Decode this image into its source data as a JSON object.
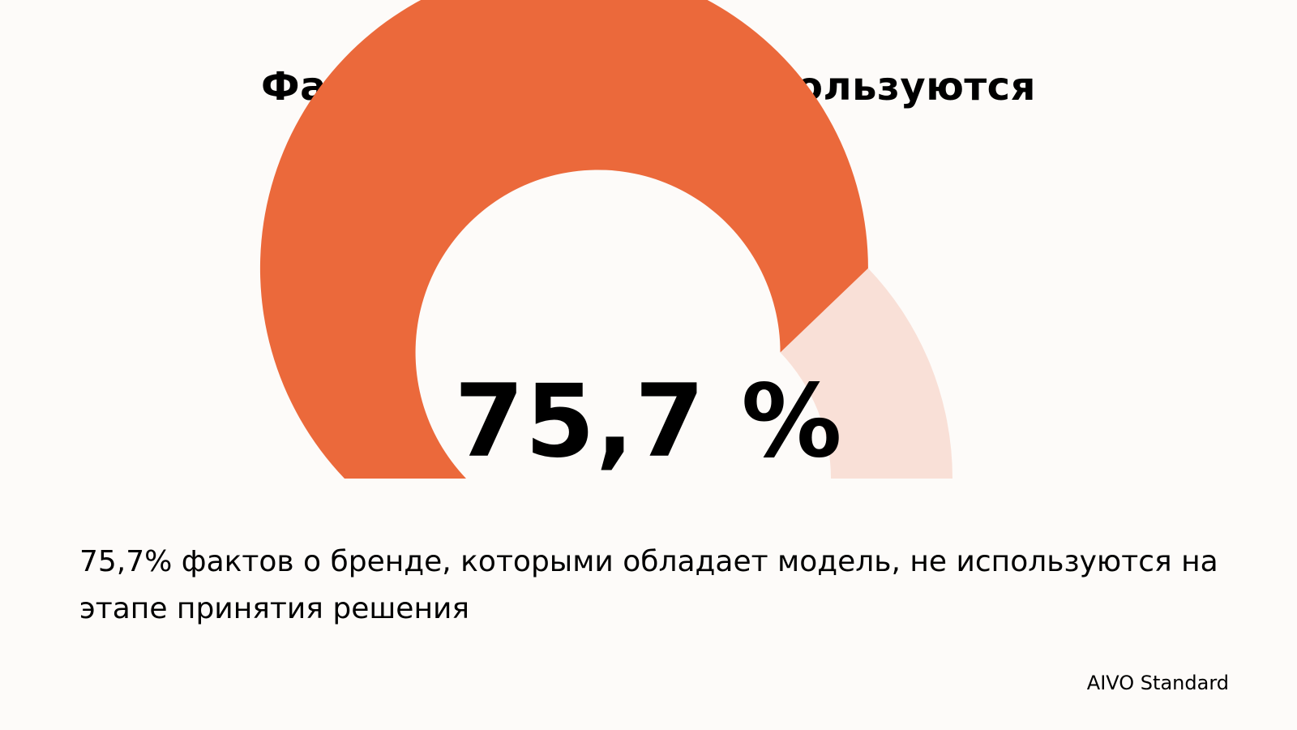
{
  "title": "Факты о бренде не используются",
  "chart_data": {
    "type": "gauge",
    "value_percent": 75.7,
    "value_label": "75,7 %",
    "range": [
      0,
      100
    ],
    "colors": {
      "filled": "#eb693b",
      "remaining": "#f9e0d7"
    }
  },
  "description": "75,7% фактов о бренде, которыми обладает модель, не используются на этапе принятия решения",
  "source": "AIVO Standard",
  "colors": {
    "background": "#fdfbf9",
    "text": "#000000"
  }
}
